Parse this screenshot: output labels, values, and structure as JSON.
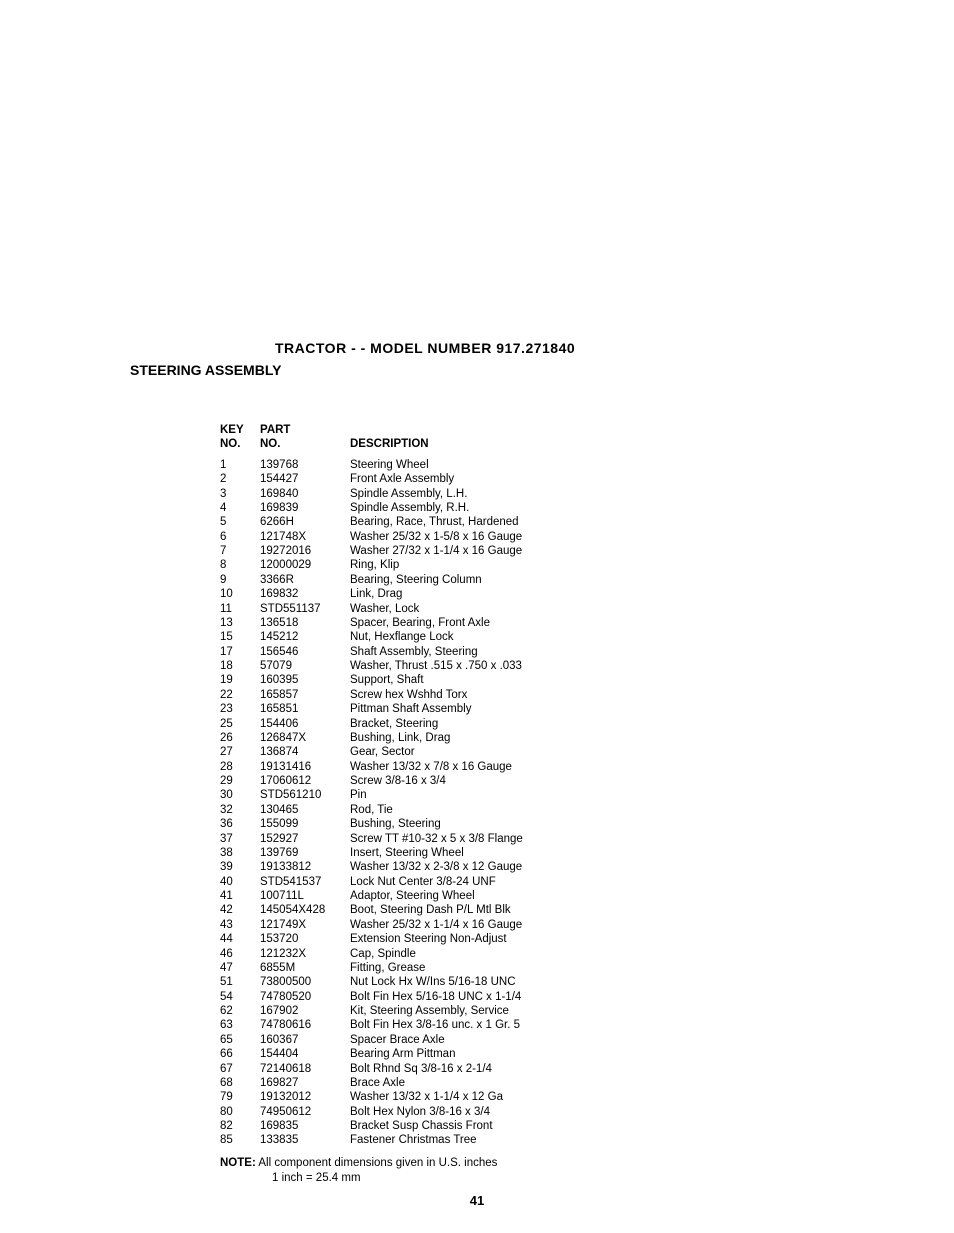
{
  "header": {
    "title": "TRACTOR - - MODEL NUMBER 917.271840",
    "subtitle": "STEERING ASSEMBLY"
  },
  "table": {
    "headers": {
      "key1": "KEY",
      "key2": "NO.",
      "part1": "PART",
      "part2": "NO.",
      "desc": "DESCRIPTION"
    },
    "rows": [
      {
        "key": "1",
        "part": "139768",
        "desc": "Steering Wheel"
      },
      {
        "key": "2",
        "part": "154427",
        "desc": "Front Axle Assembly"
      },
      {
        "key": "3",
        "part": "169840",
        "desc": "Spindle Assembly, L.H."
      },
      {
        "key": "4",
        "part": "169839",
        "desc": "Spindle Assembly, R.H."
      },
      {
        "key": "5",
        "part": "6266H",
        "desc": "Bearing, Race, Thrust, Hardened"
      },
      {
        "key": "6",
        "part": "121748X",
        "desc": "Washer 25/32 x 1-5/8 x 16 Gauge"
      },
      {
        "key": "7",
        "part": "19272016",
        "desc": "Washer 27/32 x 1-1/4 x 16 Gauge"
      },
      {
        "key": "8",
        "part": "12000029",
        "desc": "Ring, Klip"
      },
      {
        "key": "9",
        "part": "3366R",
        "desc": "Bearing, Steering Column"
      },
      {
        "key": "10",
        "part": "169832",
        "desc": "Link, Drag"
      },
      {
        "key": "11",
        "part": "STD551137",
        "desc": "Washer, Lock"
      },
      {
        "key": "13",
        "part": "136518",
        "desc": "Spacer, Bearing, Front Axle"
      },
      {
        "key": "15",
        "part": "145212",
        "desc": "Nut, Hexflange Lock"
      },
      {
        "key": "17",
        "part": "156546",
        "desc": "Shaft Assembly, Steering"
      },
      {
        "key": "18",
        "part": "57079",
        "desc": "Washer, Thrust .515 x .750 x .033"
      },
      {
        "key": "19",
        "part": "160395",
        "desc": "Support, Shaft"
      },
      {
        "key": "22",
        "part": "165857",
        "desc": "Screw hex Wshhd Torx"
      },
      {
        "key": "23",
        "part": "165851",
        "desc": "Pittman Shaft Assembly"
      },
      {
        "key": "25",
        "part": "154406",
        "desc": "Bracket, Steering"
      },
      {
        "key": "26",
        "part": "126847X",
        "desc": "Bushing, Link, Drag"
      },
      {
        "key": "27",
        "part": "136874",
        "desc": "Gear, Sector"
      },
      {
        "key": "28",
        "part": "19131416",
        "desc": "Washer 13/32 x 7/8 x 16 Gauge"
      },
      {
        "key": "29",
        "part": "17060612",
        "desc": "Screw  3/8-16 x 3/4"
      },
      {
        "key": "30",
        "part": "STD561210",
        "desc": "Pin"
      },
      {
        "key": "32",
        "part": "130465",
        "desc": "Rod, Tie"
      },
      {
        "key": "36",
        "part": "155099",
        "desc": "Bushing, Steering"
      },
      {
        "key": "37",
        "part": "152927",
        "desc": "Screw TT #10-32 x 5 x 3/8 Flange"
      },
      {
        "key": "38",
        "part": "139769",
        "desc": "Insert, Steering Wheel"
      },
      {
        "key": "39",
        "part": "19133812",
        "desc": "Washer 13/32 x 2-3/8 x 12 Gauge"
      },
      {
        "key": "40",
        "part": "STD541537",
        "desc": "Lock Nut Center 3/8-24 UNF"
      },
      {
        "key": "41",
        "part": "100711L",
        "desc": "Adaptor, Steering Wheel"
      },
      {
        "key": "42",
        "part": "145054X428",
        "desc": "Boot, Steering Dash P/L Mtl Blk"
      },
      {
        "key": "43",
        "part": "121749X",
        "desc": "Washer 25/32 x 1-1/4 x 16 Gauge"
      },
      {
        "key": "44",
        "part": "153720",
        "desc": "Extension Steering Non-Adjust"
      },
      {
        "key": "46",
        "part": "121232X",
        "desc": "Cap, Spindle"
      },
      {
        "key": "47",
        "part": "6855M",
        "desc": "Fitting, Grease"
      },
      {
        "key": "51",
        "part": "73800500",
        "desc": "Nut Lock Hx W/Ins 5/16-18 UNC"
      },
      {
        "key": "54",
        "part": "74780520",
        "desc": "Bolt Fin Hex 5/16-18 UNC x 1-1/4"
      },
      {
        "key": "62",
        "part": "167902",
        "desc": "Kit, Steering Assembly, Service"
      },
      {
        "key": "63",
        "part": "74780616",
        "desc": "Bolt Fin Hex 3/8-16 unc. x 1 Gr. 5"
      },
      {
        "key": "65",
        "part": "160367",
        "desc": "Spacer Brace Axle"
      },
      {
        "key": "66",
        "part": "154404",
        "desc": "Bearing Arm Pittman"
      },
      {
        "key": "67",
        "part": "72140618",
        "desc": "Bolt Rhnd Sq 3/8-16 x 2-1/4"
      },
      {
        "key": "68",
        "part": "169827",
        "desc": "Brace Axle"
      },
      {
        "key": "79",
        "part": "19132012",
        "desc": "Washer 13/32 x 1-1/4 x 12 Ga"
      },
      {
        "key": "80",
        "part": "74950612",
        "desc": "Bolt Hex Nylon 3/8-16 x 3/4"
      },
      {
        "key": "82",
        "part": "169835",
        "desc": "Bracket Susp Chassis Front"
      },
      {
        "key": "85",
        "part": "133835",
        "desc": "Fastener Christmas Tree"
      }
    ]
  },
  "note": {
    "prefix": "NOTE:",
    "text": " All component dimensions given in U.S. inches",
    "sub": "1 inch = 25.4 mm"
  },
  "pageNumber": "41"
}
